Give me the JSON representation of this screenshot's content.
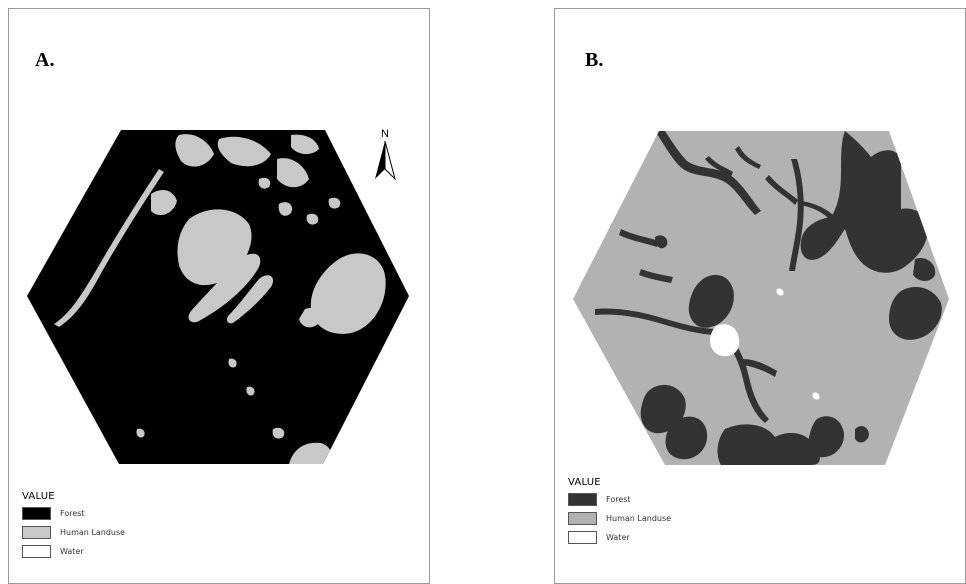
{
  "panels": [
    {
      "id": "A",
      "label": "A.",
      "has_north_arrow": true,
      "north_label": "N",
      "legend": {
        "title": "VALUE",
        "items": [
          {
            "label": "Forest",
            "color": "#000000"
          },
          {
            "label": "Human Landuse",
            "color": "#c8c8c8"
          },
          {
            "label": "Water",
            "color": "#ffffff"
          }
        ]
      }
    },
    {
      "id": "B",
      "label": "B.",
      "has_north_arrow": false,
      "legend": {
        "title": "VALUE",
        "items": [
          {
            "label": "Forest",
            "color": "#333333"
          },
          {
            "label": "Human Landuse",
            "color": "#b2b2b2"
          },
          {
            "label": "Water",
            "color": "#ffffff"
          }
        ]
      }
    }
  ],
  "icons": {
    "north_arrow": "north-arrow-icon"
  }
}
